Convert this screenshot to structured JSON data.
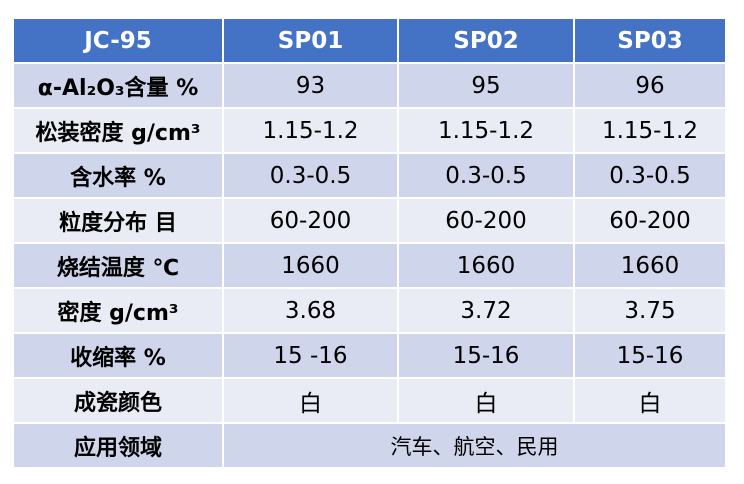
{
  "table": {
    "header": [
      "JC-95",
      "SP01",
      "SP02",
      "SP03"
    ],
    "rows": [
      {
        "label": "α-Al₂O₃含量 %",
        "values": [
          "93",
          "95",
          "96"
        ]
      },
      {
        "label": "松装密度 g/cm³",
        "values": [
          "1.15-1.2",
          "1.15-1.2",
          "1.15-1.2"
        ]
      },
      {
        "label": "含水率 %",
        "values": [
          "0.3-0.5",
          "0.3-0.5",
          "0.3-0.5"
        ]
      },
      {
        "label": "粒度分布 目",
        "values": [
          "60-200",
          "60-200",
          "60-200"
        ]
      },
      {
        "label": "烧结温度 ℃",
        "values": [
          "1660",
          "1660",
          "1660"
        ]
      },
      {
        "label": "密度 g/cm³",
        "values": [
          "3.68",
          "3.72",
          "3.75"
        ]
      },
      {
        "label": "收缩率 %",
        "values": [
          "15 -16",
          "15-16",
          "15-16"
        ]
      },
      {
        "label": "成瓷颜色",
        "values": [
          "白",
          "白",
          "白"
        ]
      }
    ],
    "application": {
      "label": "应用领域",
      "value": "汽车、航空、民用"
    }
  },
  "colors": {
    "header_bg": "#4472C4",
    "row_dark": "#CFD5EA",
    "row_light": "#E9EBF5"
  }
}
